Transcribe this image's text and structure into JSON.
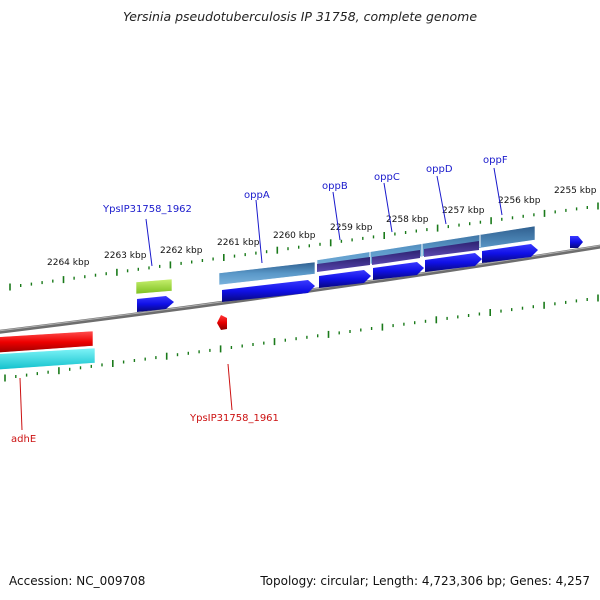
{
  "title": "Yersinia pseudotuberculosis IP 31758, complete genome",
  "footer": {
    "accession": "Accession: NC_009708",
    "topology": "Topology: circular; Length: 4,723,306 bp; Genes: 4,257"
  },
  "ruler_labels": [
    "2264 kbp",
    "2263 kbp",
    "2262 kbp",
    "2261 kbp",
    "2260 kbp",
    "2259 kbp",
    "2258 kbp",
    "2257 kbp",
    "2256 kbp",
    "2255 kbp"
  ],
  "gene_labels_forward": [
    "YpsIP31758_1962",
    "oppA",
    "oppB",
    "oppC",
    "oppD",
    "oppF"
  ],
  "gene_labels_reverse": [
    "YpsIP31758_1961",
    "adhE"
  ],
  "colors": {
    "forward_gene": "#1010e6",
    "reverse_gene": "#e60000",
    "cds_band": "#4a86b8",
    "feature_green": "#99dd33",
    "feature_cyan": "#22d8e0",
    "feature_purple": "#4b3a99",
    "tick": "#1a7a1a",
    "backbone": "#808080"
  }
}
